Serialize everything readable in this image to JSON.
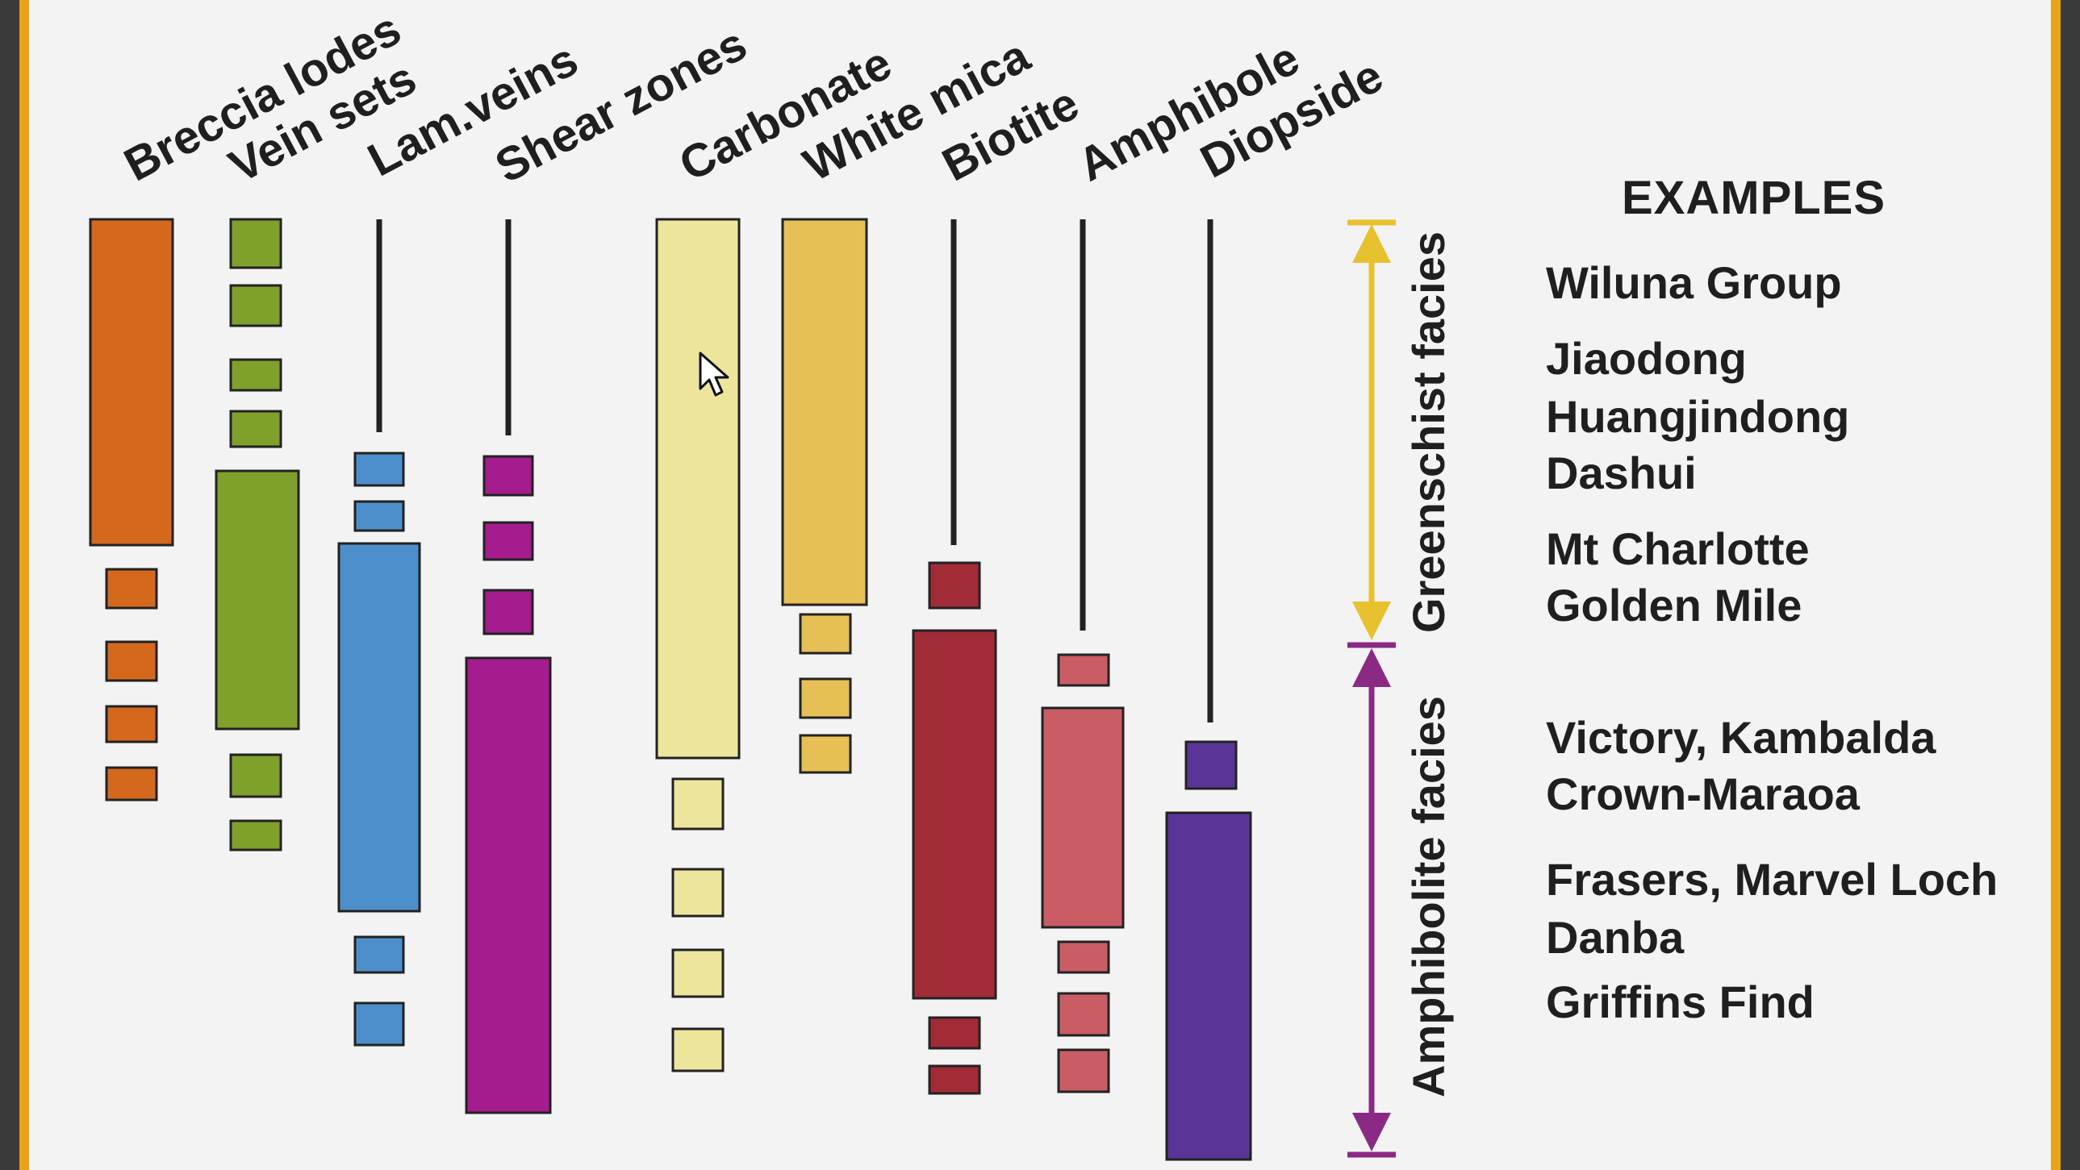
{
  "columns": [
    {
      "id": "breccia-lodes",
      "label": "Breccia lodes",
      "color": "#d4691e"
    },
    {
      "id": "vein-sets",
      "label": "Vein sets",
      "color": "#7fa02a"
    },
    {
      "id": "lam-veins",
      "label": "Lam.veins",
      "color": "#4d8fcb"
    },
    {
      "id": "shear-zones",
      "label": "Shear zones",
      "color": "#a51c8f"
    },
    {
      "id": "carbonate",
      "label": "Carbonate",
      "color": "#ede59c"
    },
    {
      "id": "white-mica",
      "label": "White mica",
      "color": "#e6c055"
    },
    {
      "id": "biotite",
      "label": "Biotite",
      "color": "#a12b36"
    },
    {
      "id": "amphibole",
      "label": "Amphibole",
      "color": "#c95c65"
    },
    {
      "id": "diopside",
      "label": "Diopside",
      "color": "#5a3597"
    }
  ],
  "facies": {
    "greenschist": {
      "label": "Greenschist facies",
      "color": "#e8c12e"
    },
    "amphibolite": {
      "label": "Amphibolite facies",
      "color": "#8a2a84"
    }
  },
  "examples": {
    "title": "EXAMPLES",
    "items": [
      "Wiluna Group",
      "Jiaodong",
      "Huangjindong",
      "Dashui",
      "Mt Charlotte",
      "Golden Mile",
      "Victory, Kambalda",
      "Crown-Maraoa",
      "Frasers, Marvel Loch",
      "Danba",
      "Griffins Find"
    ]
  },
  "theme": {
    "slide_bg": "#f3f3f3",
    "frame": "#e8a317",
    "outline": "#222222"
  }
}
